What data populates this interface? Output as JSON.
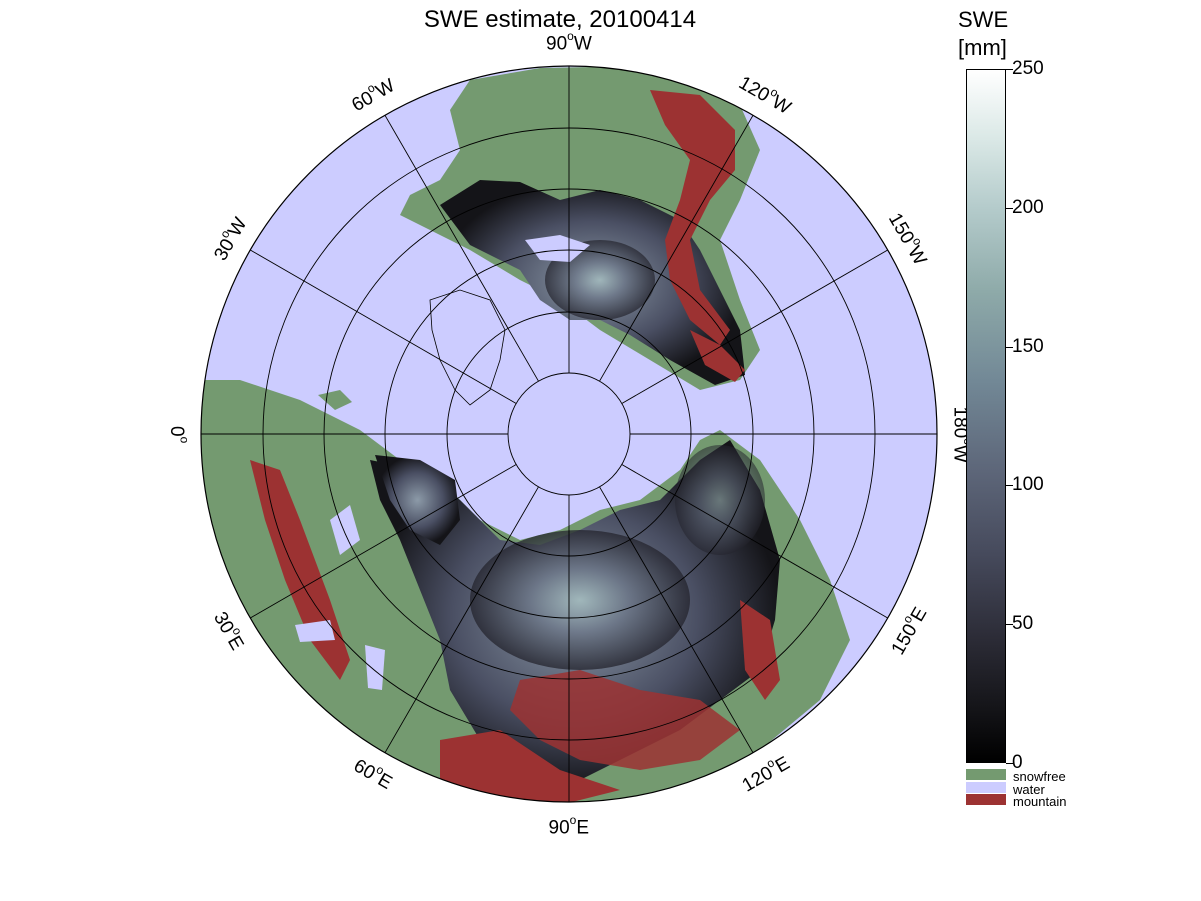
{
  "title": "SWE estimate, 20100414",
  "colorbar": {
    "title_line1": "SWE",
    "title_line2": "[mm]",
    "ticks": [
      "250",
      "200",
      "150",
      "100",
      "50",
      "0"
    ],
    "range": [
      0,
      250
    ]
  },
  "categories": [
    {
      "label": "snowfree",
      "color": "#749a70"
    },
    {
      "label": "water",
      "color": "#ccccff"
    },
    {
      "label": "mountain",
      "color": "#9c3232"
    }
  ],
  "longitude_labels": [
    {
      "deg": "90",
      "hemi": "W"
    },
    {
      "deg": "120",
      "hemi": "W"
    },
    {
      "deg": "150",
      "hemi": "W"
    },
    {
      "deg": "180",
      "hemi": "W"
    },
    {
      "deg": "150",
      "hemi": "E"
    },
    {
      "deg": "120",
      "hemi": "E"
    },
    {
      "deg": "90",
      "hemi": "E"
    },
    {
      "deg": "60",
      "hemi": "E"
    },
    {
      "deg": "30",
      "hemi": "E"
    },
    {
      "deg": "0",
      "hemi": ""
    },
    {
      "deg": "30",
      "hemi": "W"
    },
    {
      "deg": "60",
      "hemi": "W"
    }
  ],
  "map_colors": {
    "water": "#ccccff",
    "snowfree": "#749a70",
    "mountain": "#9c3232",
    "snow_low": "#141418",
    "snow_mid": "#4a4f63",
    "snow_high": "#aac4c4"
  }
}
